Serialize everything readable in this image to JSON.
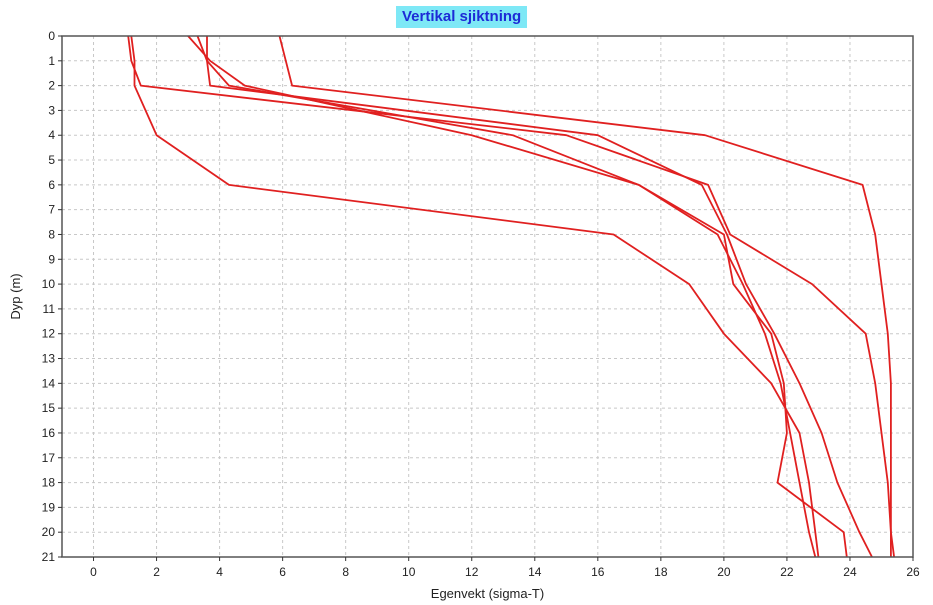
{
  "colors": {
    "title_background": "#7ee8f6",
    "title_text": "#1d2bd6",
    "series_line": "#e02020",
    "grid": "#c8c8c8",
    "plot_border": "#555555"
  },
  "chart_data": {
    "type": "line",
    "title": "Vertikal sjiktning",
    "xlabel": "Egenvekt (sigma-T)",
    "ylabel": "Dyp (m)",
    "xlim": [
      -1,
      26
    ],
    "ylim": [
      0,
      21
    ],
    "y_inverted": true,
    "grid": true,
    "x_ticks": [
      0,
      2,
      4,
      6,
      8,
      10,
      12,
      14,
      16,
      18,
      20,
      22,
      24,
      26
    ],
    "y_ticks": [
      0,
      1,
      2,
      3,
      4,
      5,
      6,
      7,
      8,
      9,
      10,
      11,
      12,
      13,
      14,
      15,
      16,
      17,
      18,
      19,
      20,
      21
    ],
    "series": [
      {
        "x": [
          1.2,
          1.3,
          1.3,
          2.0,
          4.3,
          16.5,
          18.9,
          20.0,
          21.5,
          22.4,
          22.7,
          22.9,
          23.0
        ],
        "y": [
          0,
          1,
          2,
          4,
          6,
          8,
          10,
          12,
          14,
          16,
          18,
          20,
          21
        ]
      },
      {
        "x": [
          1.1,
          1.2,
          1.5,
          15.0,
          19.5,
          20.2,
          22.8,
          24.5,
          24.8,
          25.0,
          25.2,
          25.3,
          25.4
        ],
        "y": [
          0,
          1,
          2,
          4,
          6,
          8,
          10,
          12,
          14,
          16,
          18,
          20,
          21
        ]
      },
      {
        "x": [
          3.0,
          3.7,
          4.8,
          12.0,
          17.3,
          19.8,
          20.6,
          21.3,
          21.8,
          22.1,
          22.4,
          22.7,
          22.9
        ],
        "y": [
          0,
          1,
          2,
          4,
          6,
          8,
          10,
          12,
          14,
          16,
          18,
          20,
          21
        ]
      },
      {
        "x": [
          3.6,
          3.6,
          3.7,
          16.0,
          19.3,
          20.1,
          20.7,
          21.6,
          22.4,
          23.1,
          23.6,
          24.3,
          24.7
        ],
        "y": [
          0,
          1,
          2,
          4,
          6,
          8,
          10,
          12,
          14,
          16,
          18,
          20,
          21
        ]
      },
      {
        "x": [
          5.9,
          6.1,
          6.3,
          19.4,
          24.4,
          24.8,
          25.0,
          25.2,
          25.3,
          25.3,
          25.3,
          25.3,
          25.3
        ],
        "y": [
          0,
          1,
          2,
          4,
          6,
          8,
          10,
          12,
          14,
          16,
          18,
          20,
          21
        ]
      },
      {
        "x": [
          3.3,
          3.6,
          4.3,
          13.3,
          17.3,
          20.0,
          20.3,
          21.5,
          21.9,
          22.0,
          21.7,
          23.8,
          23.9
        ],
        "y": [
          0,
          1,
          2,
          4,
          6,
          8,
          10,
          12,
          14,
          16,
          18,
          20,
          21
        ]
      }
    ]
  }
}
